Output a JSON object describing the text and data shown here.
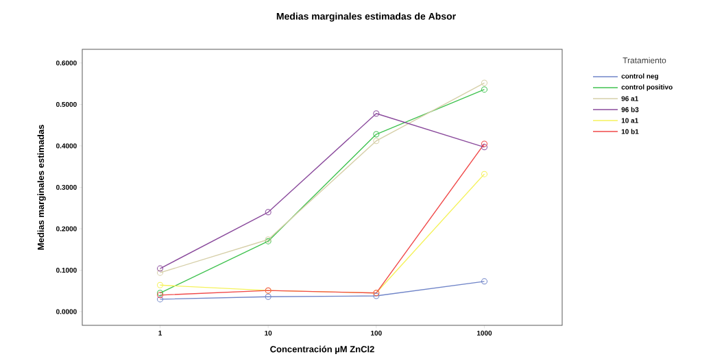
{
  "chart_data": {
    "type": "line",
    "title": "Medias marginales estimadas de Absor",
    "xlabel": "Concentración µM ZnCl2",
    "ylabel": "Medias marginales estimadas",
    "legend_title": "Tratamiento",
    "categories": [
      "1",
      "10",
      "100",
      "1000"
    ],
    "series": [
      {
        "name": "control neg",
        "color": "#6f84c8",
        "values": [
          0.03,
          0.036,
          0.038,
          0.073
        ]
      },
      {
        "name": "control positivo",
        "color": "#3fc24f",
        "values": [
          0.045,
          0.17,
          0.428,
          0.536
        ]
      },
      {
        "name": "96 a1",
        "color": "#d6cfa8",
        "values": [
          0.094,
          0.174,
          0.412,
          0.552
        ]
      },
      {
        "name": "96 b3",
        "color": "#8a4a9c",
        "values": [
          0.104,
          0.24,
          0.478,
          0.397
        ]
      },
      {
        "name": "10 a1",
        "color": "#f5f25a",
        "values": [
          0.064,
          0.051,
          0.045,
          0.332
        ]
      },
      {
        "name": "10 b1",
        "color": "#f04848",
        "values": [
          0.04,
          0.051,
          0.045,
          0.405
        ]
      }
    ],
    "ylim": [
      -0.033,
      0.633
    ],
    "yticks": [
      {
        "value": 0,
        "label": "0.0000"
      },
      {
        "value": 0.1,
        "label": "0.1000"
      },
      {
        "value": 0.2,
        "label": "0.2000"
      },
      {
        "value": 0.3,
        "label": "0.3000"
      },
      {
        "value": 0.4,
        "label": "0.4000"
      },
      {
        "value": 0.5,
        "label": "0.5000"
      },
      {
        "value": 0.6,
        "label": "0.6000"
      }
    ],
    "marker": "circle",
    "line_style": "solid",
    "grid": false,
    "legend": "right"
  }
}
